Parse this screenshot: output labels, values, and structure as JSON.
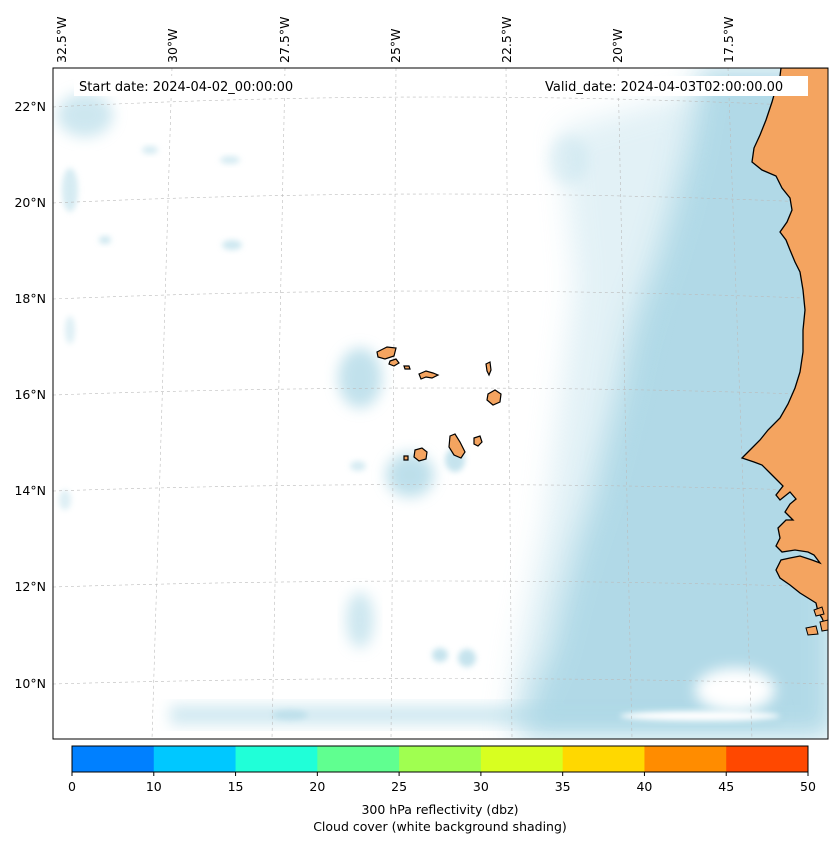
{
  "map": {
    "start_date": "Start date: 2024-04-02_00:00:00",
    "valid_date": "Valid_date: 2024-04-03T02:00:00.00",
    "lon_labels": [
      "32.5°W",
      "30°W",
      "27.5°W",
      "25°W",
      "22.5°W",
      "20°W",
      "17.5°W"
    ],
    "lat_labels": [
      "22°N",
      "20°N",
      "18°N",
      "16°N",
      "14°N",
      "12°N",
      "10°N"
    ],
    "colors": {
      "land": "#f4a460",
      "cloud": "#add8e6",
      "ocean": "#ffffff",
      "gridline": "#bbbbbb"
    }
  },
  "colorbar": {
    "ticks": [
      "0",
      "10",
      "15",
      "20",
      "25",
      "30",
      "35",
      "40",
      "45",
      "50"
    ],
    "colors": [
      "#0080ff",
      "#00c8ff",
      "#20ffd8",
      "#60ff90",
      "#a0ff50",
      "#d8ff20",
      "#ffd800",
      "#ff8c00",
      "#ff4800"
    ],
    "label_line1": "300 hPa reflectivity (dbz)",
    "label_line2": "Cloud cover (white background shading)"
  }
}
